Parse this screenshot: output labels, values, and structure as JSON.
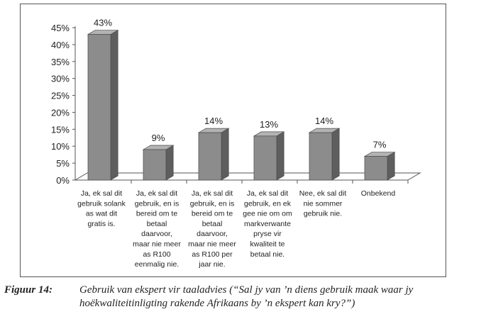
{
  "chart_data": {
    "type": "bar",
    "categories": [
      "Ja, ek sal dit gebruik solank as wat dit gratis is.",
      "Ja, ek sal dit gebruik, en is bereid om te betaal daarvoor, maar nie meer as R100 eenmalig nie.",
      "Ja, ek sal dit gebruik, en is bereid om te betaal daarvoor, maar nie meer as R100 per jaar nie.",
      "Ja, ek sal dit gebruik, en ek gee nie om om markverwante pryse vir kwaliteit te betaal nie.",
      "Nee, ek sal dit nie sommer gebruik nie.",
      "Onbekend"
    ],
    "category_lines": [
      [
        "Ja, ek sal dit",
        "gebruik solank",
        "as wat dit",
        "gratis is."
      ],
      [
        "Ja, ek sal dit",
        "gebruik, en is",
        "bereid om te",
        "betaal",
        "daarvoor,",
        "maar nie meer",
        "as R100",
        "eenmalig nie."
      ],
      [
        "Ja, ek sal dit",
        "gebruik, en is",
        "bereid om te",
        "betaal",
        "daarvoor,",
        "maar nie meer",
        "as R100 per",
        "jaar nie."
      ],
      [
        "Ja, ek sal dit",
        "gebruik, en ek",
        "gee nie om om",
        "markverwante",
        "pryse vir",
        "kwaliteit te",
        "betaal nie."
      ],
      [
        "Nee, ek sal dit",
        "nie sommer",
        "gebruik nie."
      ],
      [
        "Onbekend"
      ]
    ],
    "values": [
      43,
      9,
      14,
      13,
      14,
      7
    ],
    "data_labels": [
      "43%",
      "9%",
      "14%",
      "13%",
      "14%",
      "7%"
    ],
    "ylim": [
      0,
      45
    ],
    "yticks": [
      "0%",
      "5%",
      "10%",
      "15%",
      "20%",
      "25%",
      "30%",
      "35%",
      "40%",
      "45%"
    ],
    "grid": false,
    "bar_style": "3d",
    "colors": {
      "bar_front": "#8c8c8c",
      "bar_side": "#5e5e5e",
      "bar_top": "#b3b3b3",
      "bar_edge": "#4a4a4a"
    }
  },
  "caption": {
    "label": "Figuur 14:",
    "text": "Gebruik van ekspert vir taaladvies (“Sal jy van ’n diens gebruik maak waar jy hoëkwaliteitinligting rakende Afrikaans by ’n ekspert kan kry?”)"
  }
}
